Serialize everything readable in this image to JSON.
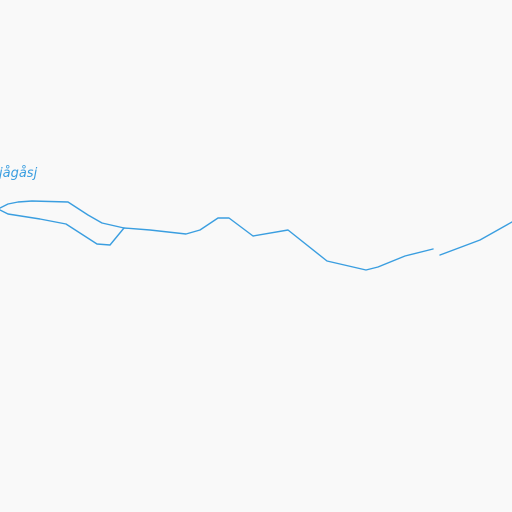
{
  "map": {
    "water_color": "#3a9ee0",
    "background_color": "#f9f9f9",
    "labels": {
      "river": "jågåsj"
    }
  }
}
